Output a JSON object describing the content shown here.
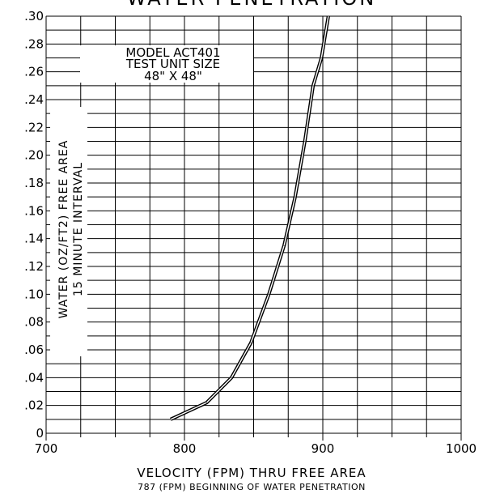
{
  "chart_data": {
    "type": "line",
    "title": "WATER PENETRATION",
    "xlabel": "VELOCITY (FPM) THRU FREE AREA",
    "xsublabel": "787 (FPM) BEGINNING OF WATER PENETRATION",
    "ylabel": "WATER (OZ/FT2) FREE AREA",
    "ylabel2": "15 MINUTE INTERVAL",
    "annotation": [
      "MODEL ACT401",
      "TEST UNIT SIZE",
      "48\" X 48\""
    ],
    "xlim": [
      700,
      1000
    ],
    "ylim": [
      0,
      0.3
    ],
    "x_ticks": [
      "700",
      "800",
      "900",
      "1000"
    ],
    "y_ticks": [
      "0",
      ".02",
      ".04",
      ".06",
      ".08",
      ".10",
      ".12",
      ".14",
      ".16",
      ".18",
      ".20",
      ".22",
      ".24",
      ".26",
      ".28",
      ".30"
    ],
    "grid": true,
    "series": [
      {
        "x": [
          790,
          816,
          834,
          848,
          861,
          872,
          880,
          887,
          893,
          899,
          904
        ],
        "values": [
          0.01,
          0.022,
          0.04,
          0.065,
          0.1,
          0.135,
          0.17,
          0.21,
          0.25,
          0.27,
          0.3
        ]
      }
    ]
  }
}
